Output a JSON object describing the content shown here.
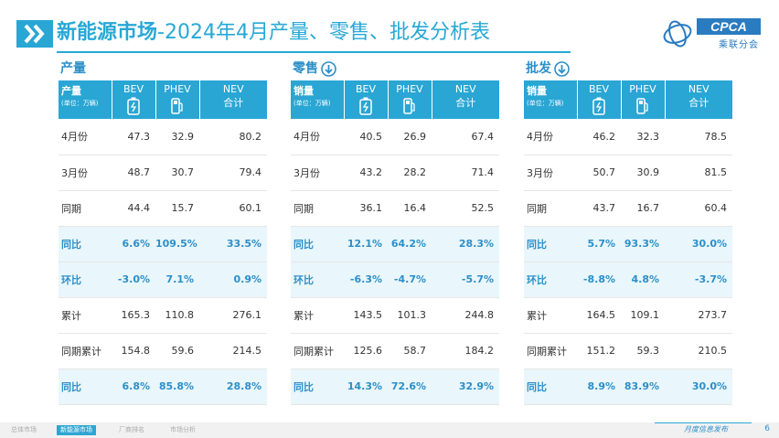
{
  "header": {
    "title_bold": "新能源市场",
    "title_rest": "-2024年4月产量、零售、批发分析表",
    "logo_text": "CPCA",
    "logo_sub": "乘联分会"
  },
  "columns": {
    "bev": "BEV",
    "phev": "PHEV",
    "nev_line1": "NEV",
    "nev_line2": "合计",
    "unit": "(单位：万辆)"
  },
  "panels": [
    {
      "title": "产量",
      "row_head": "产量",
      "rows": [
        {
          "label": "4月份",
          "bev": "47.3",
          "phev": "32.9",
          "nev": "80.2"
        },
        {
          "label": "3月份",
          "bev": "48.7",
          "phev": "30.7",
          "nev": "79.4"
        },
        {
          "label": "同期",
          "bev": "44.4",
          "phev": "15.7",
          "nev": "60.1"
        },
        {
          "label": "同比",
          "bev": "6.6%",
          "phev": "109.5%",
          "nev": "33.5%"
        },
        {
          "label": "环比",
          "bev": "-3.0%",
          "phev": "7.1%",
          "nev": "0.9%"
        },
        {
          "label": "累计",
          "bev": "165.3",
          "phev": "110.8",
          "nev": "276.1"
        },
        {
          "label": "同期累计",
          "bev": "154.8",
          "phev": "59.6",
          "nev": "214.5"
        },
        {
          "label": "同比",
          "bev": "6.8%",
          "phev": "85.8%",
          "nev": "28.8%"
        }
      ]
    },
    {
      "title": "零售",
      "row_head": "销量",
      "rows": [
        {
          "label": "4月份",
          "bev": "40.5",
          "phev": "26.9",
          "nev": "67.4"
        },
        {
          "label": "3月份",
          "bev": "43.2",
          "phev": "28.2",
          "nev": "71.4"
        },
        {
          "label": "同期",
          "bev": "36.1",
          "phev": "16.4",
          "nev": "52.5"
        },
        {
          "label": "同比",
          "bev": "12.1%",
          "phev": "64.2%",
          "nev": "28.3%"
        },
        {
          "label": "环比",
          "bev": "-6.3%",
          "phev": "-4.7%",
          "nev": "-5.7%"
        },
        {
          "label": "累计",
          "bev": "143.5",
          "phev": "101.3",
          "nev": "244.8"
        },
        {
          "label": "同期累计",
          "bev": "125.6",
          "phev": "58.7",
          "nev": "184.2"
        },
        {
          "label": "同比",
          "bev": "14.3%",
          "phev": "72.6%",
          "nev": "32.9%"
        }
      ]
    },
    {
      "title": "批发",
      "row_head": "销量",
      "rows": [
        {
          "label": "4月份",
          "bev": "46.2",
          "phev": "32.3",
          "nev": "78.5"
        },
        {
          "label": "3月份",
          "bev": "50.7",
          "phev": "30.9",
          "nev": "81.5"
        },
        {
          "label": "同期",
          "bev": "43.7",
          "phev": "16.7",
          "nev": "60.4"
        },
        {
          "label": "同比",
          "bev": "5.7%",
          "phev": "93.3%",
          "nev": "30.0%"
        },
        {
          "label": "环比",
          "bev": "-8.8%",
          "phev": "4.8%",
          "nev": "-3.7%"
        },
        {
          "label": "累计",
          "bev": "164.5",
          "phev": "109.1",
          "nev": "273.7"
        },
        {
          "label": "同期累计",
          "bev": "151.2",
          "phev": "59.3",
          "nev": "210.5"
        },
        {
          "label": "同比",
          "bev": "8.9%",
          "phev": "83.9%",
          "nev": "30.0%"
        }
      ]
    }
  ],
  "footer": {
    "tabs": [
      "总体市场",
      "新能源市场",
      "厂商排名",
      "市场分析"
    ],
    "active_tab": 1,
    "right_text": "月度信息发布",
    "page": "6"
  },
  "colors": {
    "accent": "#29a6d4",
    "highlight_row": "#e9f6fb",
    "highlight_text": "#2c8fc9"
  },
  "icons": {
    "bev": "battery-icon",
    "phev": "fuel-pump-plug-icon",
    "trend": "down-arrow-circle-icon"
  }
}
